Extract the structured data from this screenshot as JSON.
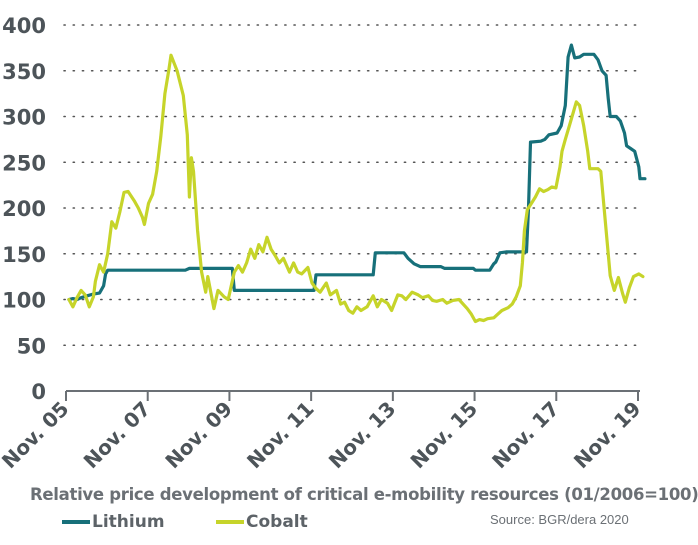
{
  "chart_data": {
    "type": "line",
    "title": "Relative price development of critical e-mobility resources (01/2006=100)",
    "xlabel": "",
    "ylabel": "",
    "source": "Source: BGR/dera 2020",
    "ylim": [
      0,
      400
    ],
    "yticks": [
      0,
      50,
      100,
      150,
      200,
      250,
      300,
      350,
      400
    ],
    "xlim": [
      2005.83,
      2019.83
    ],
    "xticks": [
      {
        "value": 2005.83,
        "label": "Nov. 05"
      },
      {
        "value": 2007.83,
        "label": "Nov. 07"
      },
      {
        "value": 2009.83,
        "label": "Nov. 09"
      },
      {
        "value": 2011.83,
        "label": "Nov. 11"
      },
      {
        "value": 2013.83,
        "label": "Nov. 13"
      },
      {
        "value": 2015.83,
        "label": "Nov. 15"
      },
      {
        "value": 2017.83,
        "label": "Nov. 17"
      },
      {
        "value": 2019.83,
        "label": "Nov. 19"
      }
    ],
    "grid": "horizontal-dotted",
    "legend_position": "bottom-left",
    "series": [
      {
        "name": "Lithium",
        "color": "#17707a",
        "points": [
          [
            2005.9,
            100
          ],
          [
            2006.0,
            101
          ],
          [
            2006.1,
            100
          ],
          [
            2006.2,
            102
          ],
          [
            2006.35,
            104
          ],
          [
            2006.5,
            106
          ],
          [
            2006.65,
            107
          ],
          [
            2006.75,
            115
          ],
          [
            2006.8,
            128
          ],
          [
            2006.85,
            132
          ],
          [
            2007.2,
            132
          ],
          [
            2007.6,
            132
          ],
          [
            2008.0,
            132
          ],
          [
            2008.4,
            132
          ],
          [
            2008.75,
            132
          ],
          [
            2008.85,
            134
          ],
          [
            2009.2,
            134
          ],
          [
            2009.6,
            134
          ],
          [
            2009.9,
            134
          ],
          [
            2009.95,
            110
          ],
          [
            2010.4,
            110
          ],
          [
            2010.8,
            110
          ],
          [
            2011.2,
            110
          ],
          [
            2011.55,
            110
          ],
          [
            2011.8,
            110
          ],
          [
            2011.9,
            110
          ],
          [
            2011.95,
            127
          ],
          [
            2012.4,
            127
          ],
          [
            2012.8,
            127
          ],
          [
            2013.2,
            127
          ],
          [
            2013.35,
            127
          ],
          [
            2013.4,
            151
          ],
          [
            2013.8,
            151
          ],
          [
            2014.1,
            151
          ],
          [
            2014.2,
            145
          ],
          [
            2014.35,
            139
          ],
          [
            2014.5,
            136
          ],
          [
            2014.8,
            136
          ],
          [
            2015.0,
            136
          ],
          [
            2015.1,
            134
          ],
          [
            2015.5,
            134
          ],
          [
            2015.8,
            134
          ],
          [
            2015.85,
            132
          ],
          [
            2016.2,
            132
          ],
          [
            2016.3,
            139
          ],
          [
            2016.35,
            141
          ],
          [
            2016.45,
            151
          ],
          [
            2016.6,
            152
          ],
          [
            2017.0,
            152
          ],
          [
            2017.1,
            152
          ],
          [
            2017.15,
            200
          ],
          [
            2017.2,
            272
          ],
          [
            2017.45,
            273
          ],
          [
            2017.55,
            275
          ],
          [
            2017.65,
            280
          ],
          [
            2017.85,
            282
          ],
          [
            2017.95,
            290
          ],
          [
            2018.05,
            312
          ],
          [
            2018.12,
            365
          ],
          [
            2018.2,
            378
          ],
          [
            2018.28,
            364
          ],
          [
            2018.4,
            365
          ],
          [
            2018.5,
            368
          ],
          [
            2018.75,
            368
          ],
          [
            2018.85,
            362
          ],
          [
            2018.95,
            350
          ],
          [
            2019.05,
            345
          ],
          [
            2019.1,
            320
          ],
          [
            2019.15,
            300
          ],
          [
            2019.3,
            300
          ],
          [
            2019.4,
            295
          ],
          [
            2019.5,
            282
          ],
          [
            2019.55,
            268
          ],
          [
            2019.65,
            265
          ],
          [
            2019.75,
            262
          ],
          [
            2019.85,
            245
          ],
          [
            2019.88,
            232
          ],
          [
            2020.0,
            232
          ]
        ]
      },
      {
        "name": "Cobalt",
        "color": "#c6d42a",
        "points": [
          [
            2005.9,
            100
          ],
          [
            2006.0,
            92
          ],
          [
            2006.1,
            102
          ],
          [
            2006.2,
            110
          ],
          [
            2006.3,
            105
          ],
          [
            2006.4,
            92
          ],
          [
            2006.5,
            103
          ],
          [
            2006.55,
            120
          ],
          [
            2006.65,
            138
          ],
          [
            2006.75,
            130
          ],
          [
            2006.85,
            150
          ],
          [
            2006.95,
            185
          ],
          [
            2007.05,
            178
          ],
          [
            2007.15,
            196
          ],
          [
            2007.25,
            217
          ],
          [
            2007.35,
            218
          ],
          [
            2007.5,
            208
          ],
          [
            2007.6,
            200
          ],
          [
            2007.7,
            190
          ],
          [
            2007.75,
            182
          ],
          [
            2007.85,
            205
          ],
          [
            2007.95,
            215
          ],
          [
            2008.05,
            240
          ],
          [
            2008.15,
            278
          ],
          [
            2008.25,
            325
          ],
          [
            2008.35,
            352
          ],
          [
            2008.4,
            367
          ],
          [
            2008.55,
            350
          ],
          [
            2008.7,
            323
          ],
          [
            2008.8,
            280
          ],
          [
            2008.85,
            212
          ],
          [
            2008.9,
            255
          ],
          [
            2008.95,
            240
          ],
          [
            2009.05,
            175
          ],
          [
            2009.15,
            130
          ],
          [
            2009.25,
            108
          ],
          [
            2009.3,
            125
          ],
          [
            2009.45,
            90
          ],
          [
            2009.55,
            110
          ],
          [
            2009.7,
            103
          ],
          [
            2009.8,
            100
          ],
          [
            2009.95,
            130
          ],
          [
            2010.05,
            137
          ],
          [
            2010.15,
            130
          ],
          [
            2010.25,
            140
          ],
          [
            2010.35,
            155
          ],
          [
            2010.45,
            145
          ],
          [
            2010.55,
            160
          ],
          [
            2010.65,
            152
          ],
          [
            2010.75,
            168
          ],
          [
            2010.85,
            155
          ],
          [
            2010.95,
            148
          ],
          [
            2011.05,
            140
          ],
          [
            2011.15,
            145
          ],
          [
            2011.3,
            130
          ],
          [
            2011.4,
            140
          ],
          [
            2011.5,
            130
          ],
          [
            2011.6,
            128
          ],
          [
            2011.75,
            135
          ],
          [
            2011.85,
            118
          ],
          [
            2011.95,
            112
          ],
          [
            2012.05,
            108
          ],
          [
            2012.2,
            118
          ],
          [
            2012.3,
            105
          ],
          [
            2012.45,
            110
          ],
          [
            2012.55,
            95
          ],
          [
            2012.65,
            97
          ],
          [
            2012.75,
            88
          ],
          [
            2012.85,
            85
          ],
          [
            2012.95,
            92
          ],
          [
            2013.05,
            88
          ],
          [
            2013.2,
            92
          ],
          [
            2013.35,
            104
          ],
          [
            2013.45,
            92
          ],
          [
            2013.55,
            100
          ],
          [
            2013.7,
            96
          ],
          [
            2013.8,
            88
          ],
          [
            2013.95,
            105
          ],
          [
            2014.05,
            104
          ],
          [
            2014.15,
            100
          ],
          [
            2014.3,
            108
          ],
          [
            2014.45,
            105
          ],
          [
            2014.55,
            102
          ],
          [
            2014.7,
            104
          ],
          [
            2014.8,
            99
          ],
          [
            2014.9,
            98
          ],
          [
            2015.05,
            100
          ],
          [
            2015.15,
            96
          ],
          [
            2015.3,
            99
          ],
          [
            2015.45,
            100
          ],
          [
            2015.55,
            95
          ],
          [
            2015.65,
            90
          ],
          [
            2015.75,
            84
          ],
          [
            2015.85,
            76
          ],
          [
            2015.95,
            78
          ],
          [
            2016.05,
            77
          ],
          [
            2016.15,
            79
          ],
          [
            2016.3,
            80
          ],
          [
            2016.4,
            84
          ],
          [
            2016.5,
            88
          ],
          [
            2016.65,
            91
          ],
          [
            2016.75,
            95
          ],
          [
            2016.85,
            103
          ],
          [
            2016.95,
            115
          ],
          [
            2017.0,
            140
          ],
          [
            2017.05,
            175
          ],
          [
            2017.12,
            198
          ],
          [
            2017.22,
            205
          ],
          [
            2017.32,
            212
          ],
          [
            2017.42,
            221
          ],
          [
            2017.52,
            218
          ],
          [
            2017.62,
            220
          ],
          [
            2017.72,
            223
          ],
          [
            2017.82,
            222
          ],
          [
            2017.92,
            245
          ],
          [
            2017.97,
            262
          ],
          [
            2018.05,
            275
          ],
          [
            2018.15,
            290
          ],
          [
            2018.25,
            305
          ],
          [
            2018.32,
            316
          ],
          [
            2018.4,
            312
          ],
          [
            2018.5,
            290
          ],
          [
            2018.6,
            262
          ],
          [
            2018.65,
            243
          ],
          [
            2018.85,
            243
          ],
          [
            2018.92,
            240
          ],
          [
            2019.0,
            200
          ],
          [
            2019.08,
            160
          ],
          [
            2019.15,
            126
          ],
          [
            2019.25,
            110
          ],
          [
            2019.35,
            124
          ],
          [
            2019.45,
            107
          ],
          [
            2019.52,
            97
          ],
          [
            2019.62,
            113
          ],
          [
            2019.72,
            125
          ],
          [
            2019.85,
            128
          ],
          [
            2019.95,
            125
          ]
        ]
      }
    ]
  }
}
